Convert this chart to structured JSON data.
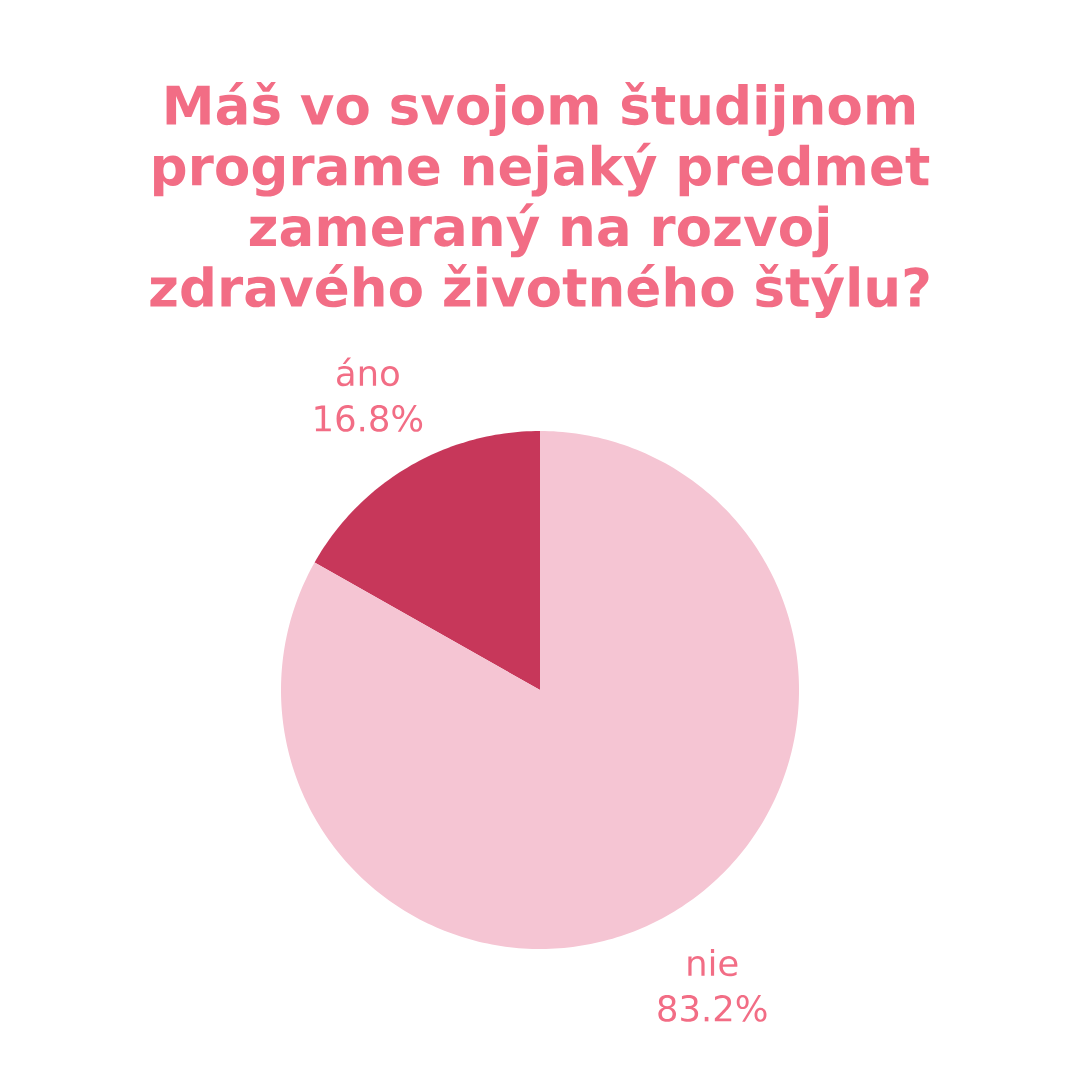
{
  "chart_data": {
    "type": "pie",
    "title": "Máš vo svojom študijnom programe nejaký predmet zameraný na rozvoj zdravého životného štýlu?",
    "categories": [
      "áno",
      "nie"
    ],
    "values": [
      16.8,
      83.2
    ],
    "colors": [
      "#c7375a",
      "#f5c5d3"
    ],
    "value_labels": [
      "16.8%",
      "83.2%"
    ]
  }
}
